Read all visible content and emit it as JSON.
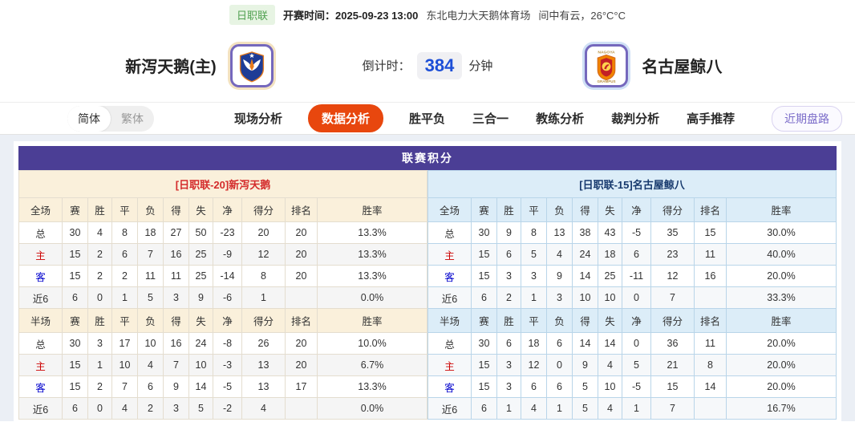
{
  "topbar": {
    "league_badge": "日职联",
    "kickoff_label": "开赛时间：",
    "kickoff_time": "2025-09-23 13:00",
    "venue": "东北电力大天鹅体育场",
    "weather": "间中有云，26°C°C"
  },
  "header": {
    "home_team": "新泻天鹅(主)",
    "away_team": "名古屋鲸八",
    "countdown_label": "倒计时：",
    "countdown_value": "384",
    "countdown_unit": "分钟"
  },
  "nav": {
    "lang_simplified": "简体",
    "lang_traditional": "繁体",
    "tabs": [
      {
        "label": "现场分析",
        "active": false
      },
      {
        "label": "数据分析",
        "active": true
      },
      {
        "label": "胜平负",
        "active": false
      },
      {
        "label": "三合一",
        "active": false
      },
      {
        "label": "教练分析",
        "active": false
      },
      {
        "label": "裁判分析",
        "active": false
      },
      {
        "label": "高手推荐",
        "active": false
      }
    ],
    "recent_button": "近期盘路"
  },
  "table": {
    "title": "联赛积分",
    "columns": [
      "赛",
      "胜",
      "平",
      "负",
      "得",
      "失",
      "净",
      "得分",
      "排名",
      "胜率"
    ],
    "left": {
      "header": "[日职联-20]新泻天鹅",
      "full": {
        "label": "全场",
        "rows": [
          {
            "label": "总",
            "values": [
              "30",
              "4",
              "8",
              "18",
              "27",
              "50",
              "-23",
              "20",
              "20",
              "13.3%"
            ]
          },
          {
            "label": "主",
            "values": [
              "15",
              "2",
              "6",
              "7",
              "16",
              "25",
              "-9",
              "12",
              "20",
              "13.3%"
            ]
          },
          {
            "label": "客",
            "values": [
              "15",
              "2",
              "2",
              "11",
              "11",
              "25",
              "-14",
              "8",
              "20",
              "13.3%"
            ]
          },
          {
            "label": "近6",
            "values": [
              "6",
              "0",
              "1",
              "5",
              "3",
              "9",
              "-6",
              "1",
              "",
              "0.0%"
            ]
          }
        ]
      },
      "half": {
        "label": "半场",
        "rows": [
          {
            "label": "总",
            "values": [
              "30",
              "3",
              "17",
              "10",
              "16",
              "24",
              "-8",
              "26",
              "20",
              "10.0%"
            ]
          },
          {
            "label": "主",
            "values": [
              "15",
              "1",
              "10",
              "4",
              "7",
              "10",
              "-3",
              "13",
              "20",
              "6.7%"
            ]
          },
          {
            "label": "客",
            "values": [
              "15",
              "2",
              "7",
              "6",
              "9",
              "14",
              "-5",
              "13",
              "17",
              "13.3%"
            ]
          },
          {
            "label": "近6",
            "values": [
              "6",
              "0",
              "4",
              "2",
              "3",
              "5",
              "-2",
              "4",
              "",
              "0.0%"
            ]
          }
        ]
      }
    },
    "right": {
      "header": "[日职联-15]名古屋鲸八",
      "full": {
        "label": "全场",
        "rows": [
          {
            "label": "总",
            "values": [
              "30",
              "9",
              "8",
              "13",
              "38",
              "43",
              "-5",
              "35",
              "15",
              "30.0%"
            ]
          },
          {
            "label": "主",
            "values": [
              "15",
              "6",
              "5",
              "4",
              "24",
              "18",
              "6",
              "23",
              "11",
              "40.0%"
            ]
          },
          {
            "label": "客",
            "values": [
              "15",
              "3",
              "3",
              "9",
              "14",
              "25",
              "-11",
              "12",
              "16",
              "20.0%"
            ]
          },
          {
            "label": "近6",
            "values": [
              "6",
              "2",
              "1",
              "3",
              "10",
              "10",
              "0",
              "7",
              "",
              "33.3%"
            ]
          }
        ]
      },
      "half": {
        "label": "半场",
        "rows": [
          {
            "label": "总",
            "values": [
              "30",
              "6",
              "18",
              "6",
              "14",
              "14",
              "0",
              "36",
              "11",
              "20.0%"
            ]
          },
          {
            "label": "主",
            "values": [
              "15",
              "3",
              "12",
              "0",
              "9",
              "4",
              "5",
              "21",
              "8",
              "20.0%"
            ]
          },
          {
            "label": "客",
            "values": [
              "15",
              "3",
              "6",
              "6",
              "5",
              "10",
              "-5",
              "15",
              "14",
              "20.0%"
            ]
          },
          {
            "label": "近6",
            "values": [
              "6",
              "1",
              "4",
              "1",
              "5",
              "4",
              "1",
              "7",
              "",
              "16.7%"
            ]
          }
        ]
      }
    }
  },
  "colors": {
    "header_purple": "#4b3e95",
    "active_tab_orange": "#e8470e",
    "home_section_bg": "#faf0db",
    "away_section_bg": "#dcedf8",
    "home_header_text": "#d42b2b",
    "away_header_text": "#16396d",
    "countdown_blue": "#1d4fd7",
    "badge_green": "#50a050",
    "home_row_label_red": "#cc0000",
    "away_row_label_blue": "#0000cc"
  }
}
